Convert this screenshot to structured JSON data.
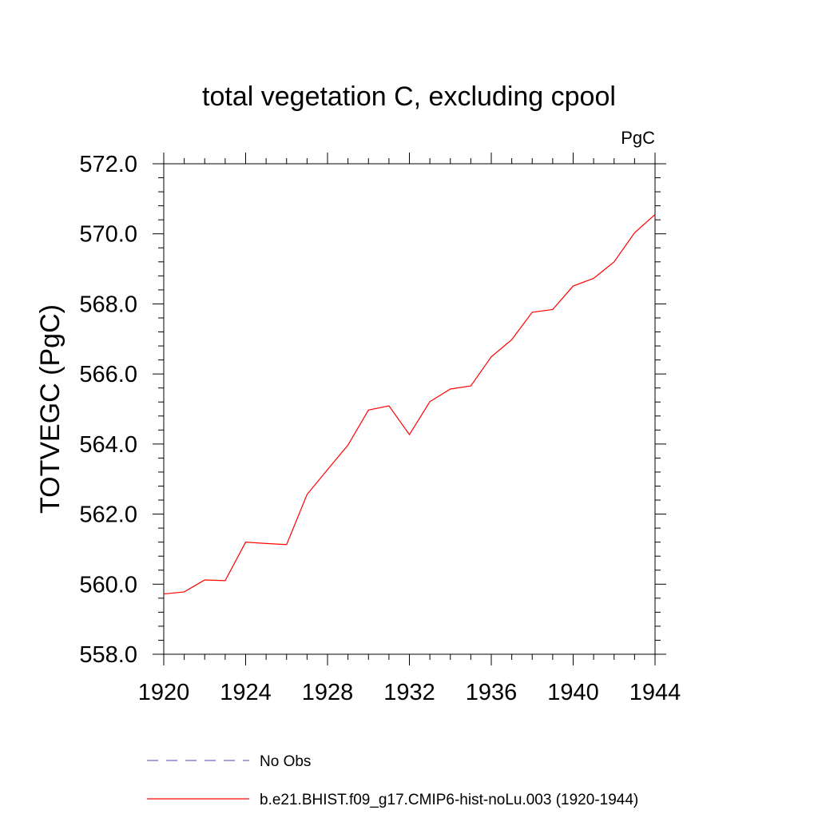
{
  "chart_data": {
    "type": "line",
    "title": "total vegetation C, excluding cpool",
    "units_label": "PgC",
    "xlabel": "",
    "ylabel": "TOTVEGC  (PgC)",
    "xlim": [
      1920,
      1944
    ],
    "ylim": [
      558.0,
      572.0
    ],
    "x_ticks": [
      "1920",
      "1924",
      "1928",
      "1932",
      "1936",
      "1940",
      "1944"
    ],
    "y_ticks": [
      "558.0",
      "560.0",
      "562.0",
      "564.0",
      "566.0",
      "568.0",
      "570.0",
      "572.0"
    ],
    "grid": false,
    "legend_position": "bottom",
    "series": [
      {
        "name": "No Obs",
        "color": "#6a6ad2",
        "dash": "dashed",
        "x": [],
        "values": []
      },
      {
        "name": "b.e21.BHIST.f09_g17.CMIP6-hist-noLu.003 (1920-1944)",
        "color": "#ff0000",
        "dash": "solid",
        "x": [
          1920,
          1921,
          1922,
          1923,
          1924,
          1925,
          1926,
          1927,
          1928,
          1929,
          1930,
          1931,
          1932,
          1933,
          1934,
          1935,
          1936,
          1937,
          1938,
          1939,
          1940,
          1941,
          1942,
          1943,
          1944
        ],
        "values": [
          559.72,
          559.78,
          560.12,
          560.1,
          561.2,
          561.16,
          561.13,
          562.56,
          563.27,
          563.97,
          564.97,
          565.09,
          564.27,
          565.21,
          565.57,
          565.66,
          566.49,
          566.98,
          567.76,
          567.84,
          568.51,
          568.73,
          569.2,
          570.03,
          570.55
        ]
      }
    ]
  }
}
